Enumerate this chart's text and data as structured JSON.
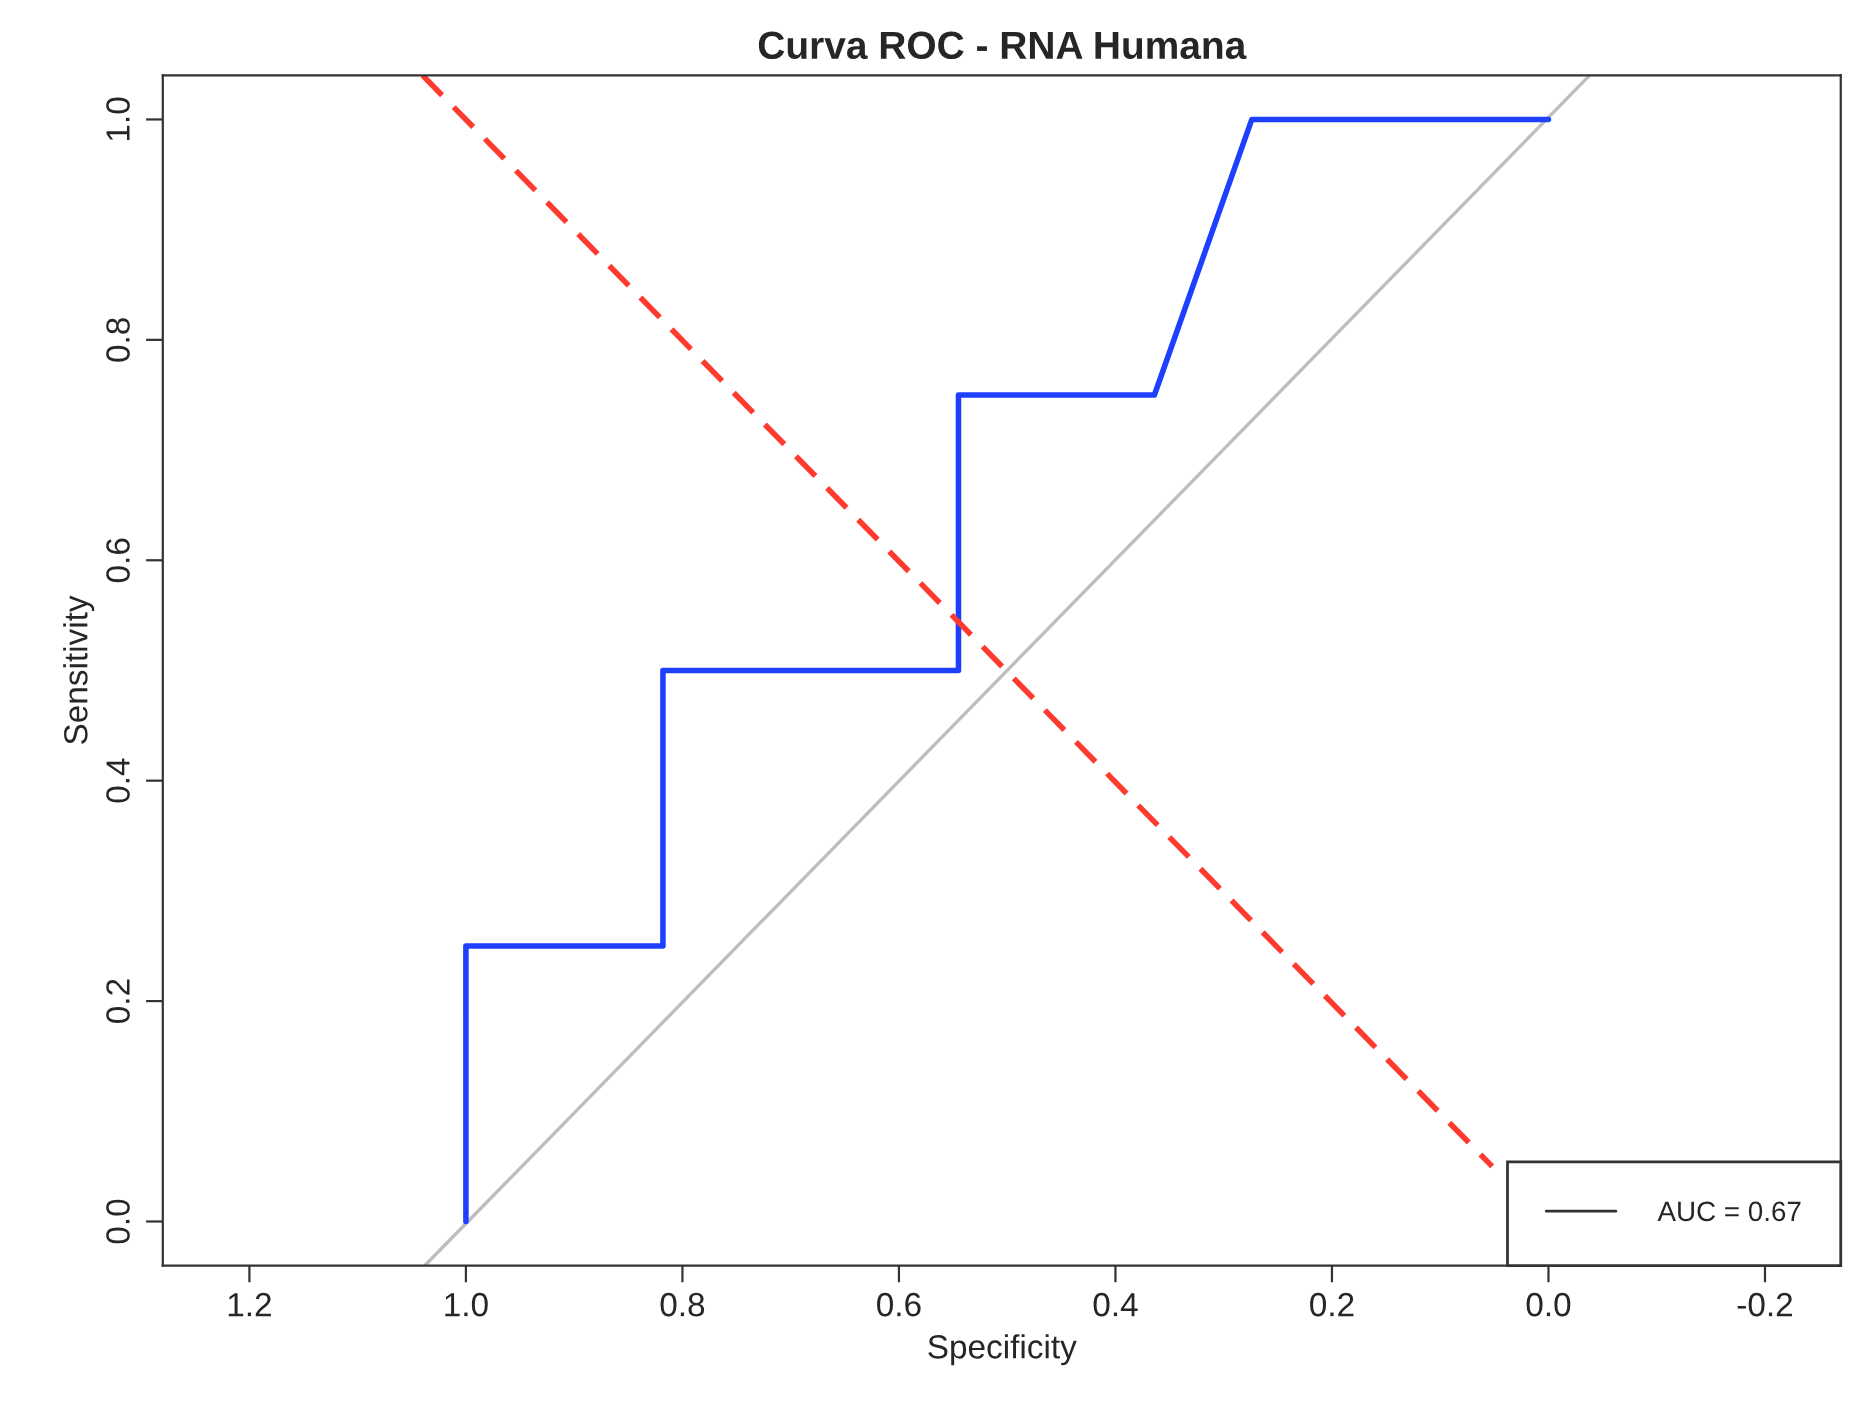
{
  "chart_data": {
    "type": "line",
    "title": "Curva ROC - RNA Humana",
    "xlabel": "Specificity",
    "ylabel": "Sensitivity",
    "xlim": [
      1.28,
      -0.27
    ],
    "xticks": [
      1.2,
      {
        "value": 1.0,
        "label": "1.0"
      },
      0.8,
      0.6,
      0.4,
      0.2,
      {
        "value": 0.0,
        "label": "0.0"
      },
      -0.2
    ],
    "ylim": [
      -0.04,
      1.04
    ],
    "yticks": [
      {
        "value": 0.0,
        "label": "0.0"
      },
      0.2,
      0.4,
      0.6,
      0.8,
      {
        "value": 1.0,
        "label": "1.0"
      }
    ],
    "series": [
      {
        "color": "#bebebe",
        "x": [
          1.037,
          -0.038
        ],
        "values": [
          -0.039,
          1.04
        ],
        "line_style": "solid"
      },
      {
        "color": "#1f3fff",
        "x": [
          1.0,
          1.0,
          0.818,
          0.818,
          0.545,
          0.545,
          0.364,
          0.274,
          0.0
        ],
        "values": [
          0.0,
          0.25,
          0.25,
          0.5,
          0.5,
          0.75,
          0.75,
          1.0,
          1.0
        ],
        "line_style": "solid"
      },
      {
        "color": "#ff3b2f",
        "x": [
          1.04,
          0.052
        ],
        "values": [
          1.04,
          0.05
        ],
        "line_style": "dashed"
      }
    ],
    "annotations": [
      "AUC = 0.67"
    ],
    "grid": false
  }
}
